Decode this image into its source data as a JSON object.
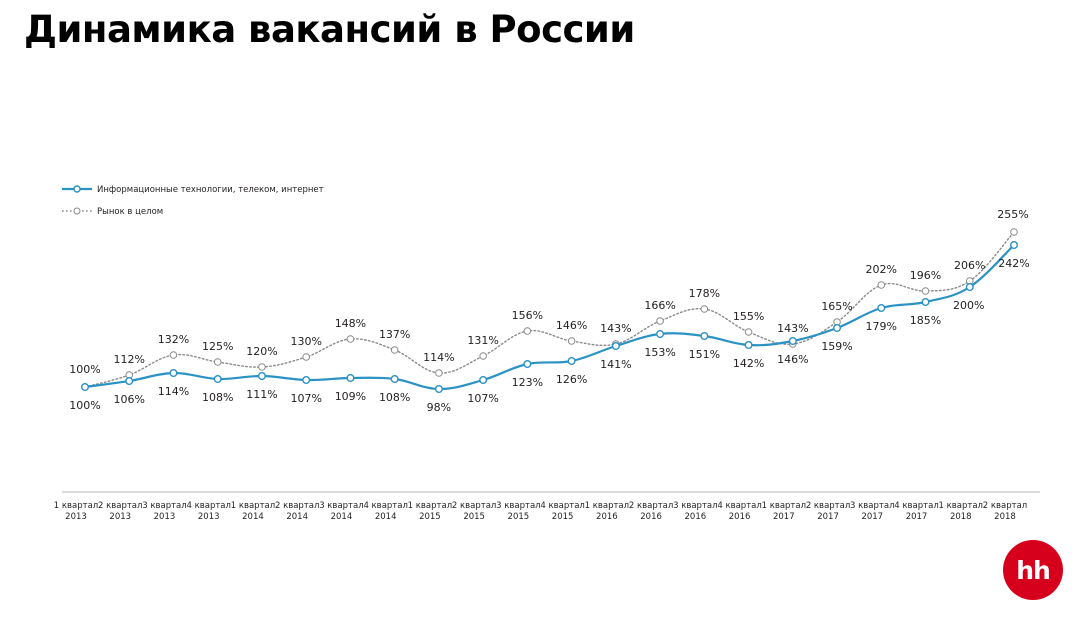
{
  "title": "Динамика вакансий в России",
  "logo_text": "hh",
  "chart_data": {
    "type": "line",
    "title": "Динамика вакансий в России",
    "categories": [
      [
        "1 квартал",
        "2013"
      ],
      [
        "2 квартал",
        "2013"
      ],
      [
        "3 квартал",
        "2013"
      ],
      [
        "4 квартал",
        "2013"
      ],
      [
        "1 квартал",
        "2014"
      ],
      [
        "2 квартал",
        "2014"
      ],
      [
        "3 квартал",
        "2014"
      ],
      [
        "4 квартал",
        "2014"
      ],
      [
        "1 квартал",
        "2015"
      ],
      [
        "2 квартал",
        "2015"
      ],
      [
        "3 квартал",
        "2015"
      ],
      [
        "4 квартал",
        "2015"
      ],
      [
        "1 квартал",
        "2016"
      ],
      [
        "2 квартал",
        "2016"
      ],
      [
        "3 квартал",
        "2016"
      ],
      [
        "4 квартал",
        "2016"
      ],
      [
        "1 квартал",
        "2017"
      ],
      [
        "2 квартал",
        "2017"
      ],
      [
        "3 квартал",
        "2017"
      ],
      [
        "4 квартал",
        "2017"
      ],
      [
        "1 квартал",
        "2018"
      ],
      [
        "2 квартал",
        "2018"
      ]
    ],
    "series": [
      {
        "name": "Информационные технологии, телеком, интернет",
        "style": "solid",
        "color": "#2b92c4",
        "values": [
          100,
          106,
          114,
          108,
          111,
          107,
          109,
          108,
          98,
          107,
          123,
          126,
          141,
          153,
          151,
          142,
          146,
          159,
          179,
          185,
          200,
          242
        ],
        "labels": [
          "100%",
          "106%",
          "114%",
          "108%",
          "111%",
          "107%",
          "109%",
          "108%",
          "98%",
          "107%",
          "123%",
          "126%",
          "141%",
          "153%",
          "151%",
          "142%",
          "146%",
          "159%",
          "179%",
          "185%",
          "200%",
          "242%"
        ]
      },
      {
        "name": "Рынок в целом",
        "style": "dotted",
        "color": "#8a8a8a",
        "values": [
          100,
          112,
          132,
          125,
          120,
          130,
          148,
          137,
          114,
          131,
          156,
          146,
          143,
          166,
          178,
          155,
          143,
          165,
          202,
          196,
          206,
          255
        ],
        "labels": [
          "100%",
          "112%",
          "132%",
          "125%",
          "120%",
          "130%",
          "148%",
          "137%",
          "114%",
          "131%",
          "156%",
          "146%",
          "143%",
          "166%",
          "178%",
          "155%",
          "143%",
          "165%",
          "202%",
          "196%",
          "206%",
          "255%"
        ]
      }
    ],
    "legend_position": "top-left",
    "grid": false,
    "unit": "%"
  }
}
